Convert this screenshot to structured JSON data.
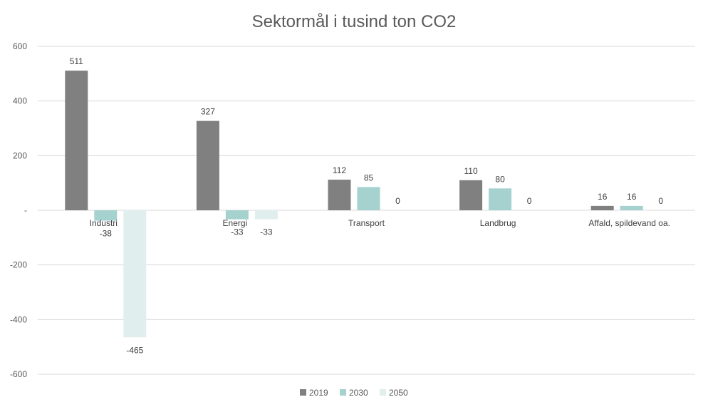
{
  "chart_data": {
    "type": "bar",
    "title": "Sektormål i tusind ton CO2",
    "categories": [
      "Industri",
      "Energi",
      "Transport",
      "Landbrug",
      "Affald, spildevand oa."
    ],
    "series": [
      {
        "name": "2019",
        "values": [
          511,
          327,
          112,
          110,
          16
        ],
        "color": "#808080"
      },
      {
        "name": "2030",
        "values": [
          -38,
          -33,
          85,
          80,
          16
        ],
        "color": "#a5d1cf"
      },
      {
        "name": "2050",
        "values": [
          -465,
          -33,
          0,
          0,
          0
        ],
        "color": "#e1eeee"
      }
    ],
    "data_labels": [
      [
        "511",
        "327",
        "112",
        "110",
        "16"
      ],
      [
        "-38",
        "-33",
        "85",
        "80",
        "16"
      ],
      [
        "-465",
        "-33",
        "0",
        "0",
        "0"
      ]
    ],
    "yticks": [
      600,
      400,
      200,
      0,
      -200,
      -400,
      -600
    ],
    "ytick_labels": [
      "600",
      "400",
      "200",
      "-",
      "-200",
      "-400",
      "-600"
    ],
    "ylim": [
      -600,
      600
    ],
    "grid": true,
    "legend_position": "bottom"
  }
}
